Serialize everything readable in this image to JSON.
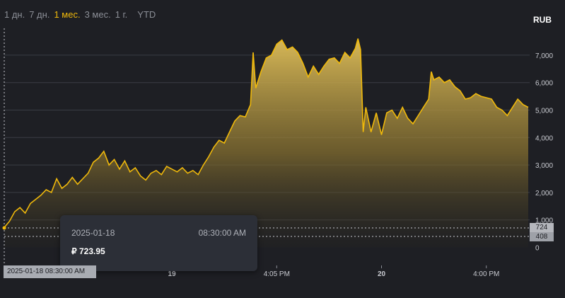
{
  "tabs": [
    {
      "label": "1 дн.",
      "active": false
    },
    {
      "label": "7 дн.",
      "active": false
    },
    {
      "label": "1 мес.",
      "active": true
    },
    {
      "label": "3 мес.",
      "active": false
    },
    {
      "label": "1 г.",
      "active": false
    },
    {
      "label": "YTD",
      "active": false
    }
  ],
  "currency": "RUB",
  "tooltip": {
    "date": "2025-01-18",
    "time": "08:30:00 AM",
    "price": "₽ 723.95"
  },
  "crosshair_label": "2025-01-18 08:30:00 AM",
  "price_tags": {
    "current": "724",
    "other": "408"
  },
  "colors": {
    "line": "#f0b90b",
    "background": "#1e1f24"
  },
  "chart_data": {
    "type": "area",
    "ylim": [
      -100,
      8100
    ],
    "yticks": [
      0,
      1000,
      2000,
      3000,
      4000,
      5000,
      6000,
      7000
    ],
    "ytick_labels": [
      "0",
      "1,000",
      "2,000",
      "3,000",
      "4,000",
      "5,000",
      "6,000",
      "7,000"
    ],
    "xticks": [
      {
        "label": "19",
        "t": 0.32,
        "bold": true
      },
      {
        "label": "4:05 PM",
        "t": 0.52,
        "bold": false
      },
      {
        "label": "20",
        "t": 0.72,
        "bold": true
      },
      {
        "label": "4:00 PM",
        "t": 0.92,
        "bold": false
      }
    ],
    "points": [
      [
        0.0,
        724
      ],
      [
        0.01,
        950
      ],
      [
        0.02,
        1300
      ],
      [
        0.03,
        1450
      ],
      [
        0.04,
        1250
      ],
      [
        0.05,
        1600
      ],
      [
        0.06,
        1750
      ],
      [
        0.07,
        1900
      ],
      [
        0.08,
        2100
      ],
      [
        0.09,
        2000
      ],
      [
        0.1,
        2500
      ],
      [
        0.11,
        2150
      ],
      [
        0.12,
        2300
      ],
      [
        0.13,
        2550
      ],
      [
        0.14,
        2300
      ],
      [
        0.15,
        2500
      ],
      [
        0.16,
        2700
      ],
      [
        0.17,
        3100
      ],
      [
        0.18,
        3250
      ],
      [
        0.19,
        3500
      ],
      [
        0.2,
        3000
      ],
      [
        0.21,
        3200
      ],
      [
        0.22,
        2850
      ],
      [
        0.23,
        3150
      ],
      [
        0.24,
        2750
      ],
      [
        0.25,
        2900
      ],
      [
        0.26,
        2600
      ],
      [
        0.27,
        2450
      ],
      [
        0.28,
        2700
      ],
      [
        0.29,
        2800
      ],
      [
        0.3,
        2650
      ],
      [
        0.31,
        2950
      ],
      [
        0.32,
        2850
      ],
      [
        0.33,
        2750
      ],
      [
        0.34,
        2900
      ],
      [
        0.35,
        2700
      ],
      [
        0.36,
        2800
      ],
      [
        0.37,
        2650
      ],
      [
        0.38,
        3000
      ],
      [
        0.39,
        3300
      ],
      [
        0.4,
        3650
      ],
      [
        0.41,
        3900
      ],
      [
        0.42,
        3800
      ],
      [
        0.43,
        4200
      ],
      [
        0.44,
        4600
      ],
      [
        0.45,
        4800
      ],
      [
        0.46,
        4750
      ],
      [
        0.47,
        5200
      ],
      [
        0.475,
        7100
      ],
      [
        0.48,
        5800
      ],
      [
        0.49,
        6400
      ],
      [
        0.5,
        6900
      ],
      [
        0.51,
        7000
      ],
      [
        0.52,
        7400
      ],
      [
        0.53,
        7550
      ],
      [
        0.54,
        7200
      ],
      [
        0.55,
        7300
      ],
      [
        0.56,
        7100
      ],
      [
        0.57,
        6700
      ],
      [
        0.58,
        6200
      ],
      [
        0.59,
        6600
      ],
      [
        0.6,
        6300
      ],
      [
        0.61,
        6600
      ],
      [
        0.62,
        6850
      ],
      [
        0.63,
        6900
      ],
      [
        0.64,
        6700
      ],
      [
        0.65,
        7100
      ],
      [
        0.66,
        6900
      ],
      [
        0.67,
        7250
      ],
      [
        0.675,
        7600
      ],
      [
        0.68,
        7200
      ],
      [
        0.685,
        4200
      ],
      [
        0.69,
        5100
      ],
      [
        0.7,
        4200
      ],
      [
        0.71,
        4900
      ],
      [
        0.72,
        4100
      ],
      [
        0.73,
        4900
      ],
      [
        0.74,
        5000
      ],
      [
        0.75,
        4700
      ],
      [
        0.76,
        5100
      ],
      [
        0.77,
        4700
      ],
      [
        0.78,
        4500
      ],
      [
        0.79,
        4800
      ],
      [
        0.8,
        5100
      ],
      [
        0.81,
        5400
      ],
      [
        0.815,
        6400
      ],
      [
        0.82,
        6100
      ],
      [
        0.83,
        6200
      ],
      [
        0.84,
        6000
      ],
      [
        0.85,
        6100
      ],
      [
        0.86,
        5850
      ],
      [
        0.87,
        5700
      ],
      [
        0.88,
        5400
      ],
      [
        0.89,
        5450
      ],
      [
        0.9,
        5600
      ],
      [
        0.91,
        5500
      ],
      [
        0.92,
        5450
      ],
      [
        0.93,
        5400
      ],
      [
        0.94,
        5100
      ],
      [
        0.95,
        5000
      ],
      [
        0.96,
        4800
      ],
      [
        0.97,
        5100
      ],
      [
        0.98,
        5400
      ],
      [
        0.99,
        5200
      ],
      [
        1.0,
        5100
      ]
    ]
  }
}
